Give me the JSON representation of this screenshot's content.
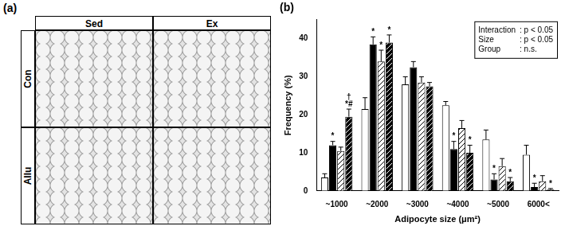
{
  "panel_a": {
    "label": "(a)",
    "columns": [
      "Sed",
      "Ex"
    ],
    "rows": [
      "Con",
      "Allu"
    ]
  },
  "chart_data": {
    "type": "bar",
    "title": "(b)",
    "x_label": "Adipocyte size (μm²)",
    "y_label": "Frequency (%)",
    "categories": [
      "~1000",
      "~2000",
      "~3000",
      "~4000",
      "~5000",
      "6000<"
    ],
    "series": [
      {
        "color": "#ffffff",
        "line_style": "solid",
        "values": [
          3.5,
          21.5,
          28,
          22.5,
          13.5,
          9.5
        ],
        "errors": [
          1,
          3,
          2,
          1,
          2.5,
          2.5
        ],
        "significance": [
          [],
          [],
          [],
          [],
          [],
          []
        ]
      },
      {
        "color": "#000000",
        "line_style": "solid",
        "values": [
          12,
          38.5,
          32.5,
          11,
          3,
          1
        ],
        "errors": [
          1,
          2,
          1.5,
          2,
          1.5,
          1
        ],
        "significance": [
          [
            "*"
          ],
          [
            "*"
          ],
          [],
          [
            "*"
          ],
          [
            "*"
          ],
          [
            "*"
          ]
        ]
      },
      {
        "color": "#ffffff",
        "line_style": "hatched",
        "values": [
          10.5,
          34,
          28.5,
          16.5,
          6.5,
          2.5
        ],
        "errors": [
          1,
          3,
          1.5,
          2,
          2,
          1.5
        ],
        "significance": [
          [],
          [
            "*"
          ],
          [],
          [],
          [],
          []
        ]
      },
      {
        "color": "#000000",
        "line_style": "hatched",
        "values": [
          19.5,
          39,
          27.5,
          10,
          2.5,
          0.3
        ],
        "errors": [
          2,
          2,
          1,
          2,
          1,
          0.3
        ],
        "significance": [
          [
            "†",
            "*#"
          ],
          [
            "*"
          ],
          [],
          [
            "*"
          ],
          [
            "*"
          ],
          [
            "*"
          ]
        ]
      }
    ],
    "annotations": [
      {
        "label": "Interaction",
        "text": ": p < 0.05"
      },
      {
        "label": "Size",
        "text": ": p < 0.05"
      },
      {
        "label": "Group",
        "text": ": n.s."
      }
    ],
    "ylim": [
      0,
      45
    ],
    "yticks": [
      0,
      10,
      20,
      30,
      40
    ],
    "grid": false
  }
}
